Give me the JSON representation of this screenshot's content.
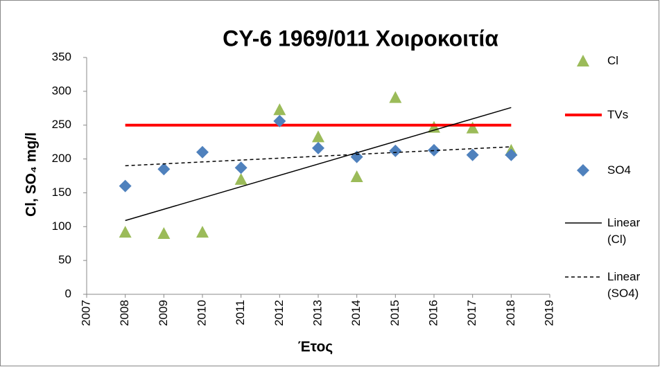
{
  "chart_data": {
    "type": "scatter",
    "title": "CY-6 1969/011 Χοιροκοιτία",
    "x_label": "Έτος",
    "y_label": "Cl, SO₄ mg/l",
    "xlim": [
      2007,
      2019
    ],
    "xticks": [
      2007,
      2008,
      2009,
      2010,
      2011,
      2012,
      2013,
      2014,
      2015,
      2016,
      2017,
      2018,
      2019
    ],
    "ylim": [
      0,
      350
    ],
    "yticks": [
      0,
      50,
      100,
      150,
      200,
      250,
      300,
      350
    ],
    "grid": false,
    "legend": "right",
    "series": [
      {
        "name": "Cl",
        "color": "#9bbb59",
        "marker": "triangle",
        "x": [
          2008,
          2009,
          2010,
          2011,
          2012,
          2013,
          2014,
          2015,
          2016,
          2017,
          2018
        ],
        "values": [
          92,
          90,
          92,
          170,
          273,
          233,
          174,
          291,
          247,
          246,
          213
        ]
      },
      {
        "name": "TVs",
        "color": "#ff0000",
        "line": "thick",
        "x": [
          2008,
          2018
        ],
        "values": [
          250,
          250
        ]
      },
      {
        "name": "SO4",
        "color": "#4f81bd",
        "marker": "diamond",
        "x": [
          2008,
          2009,
          2010,
          2011,
          2012,
          2013,
          2014,
          2015,
          2016,
          2017,
          2018
        ],
        "values": [
          160,
          185,
          210,
          187,
          256,
          216,
          203,
          212,
          213,
          206,
          206
        ]
      },
      {
        "name": "Linear (Cl)",
        "color": "#000000",
        "line": "solid",
        "x": [
          2008,
          2018
        ],
        "values": [
          109,
          276
        ]
      },
      {
        "name": "Linear (SO4)",
        "color": "#000000",
        "line": "dashed",
        "x": [
          2008,
          2018
        ],
        "values": [
          190,
          218
        ]
      }
    ]
  }
}
